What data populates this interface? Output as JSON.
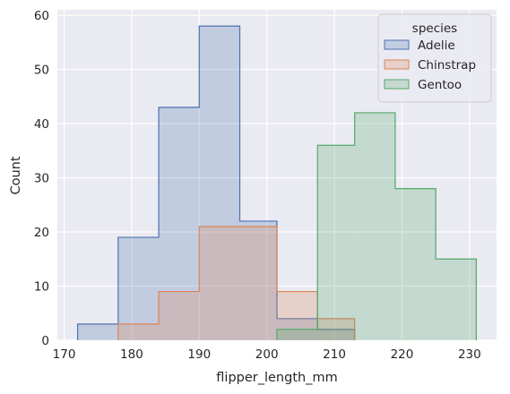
{
  "chart_data": {
    "type": "histogram",
    "element": "step",
    "title": "",
    "xlabel": "flipper_length_mm",
    "ylabel": "Count",
    "xlim": [
      169,
      234
    ],
    "ylim": [
      0,
      61
    ],
    "x_ticks": [
      170,
      180,
      190,
      200,
      210,
      220,
      230
    ],
    "y_ticks": [
      0,
      10,
      20,
      30,
      40,
      50,
      60
    ],
    "grid": true,
    "legend": {
      "title": "species",
      "placement": "top-right"
    },
    "series": [
      {
        "name": "Adelie",
        "color": "#4c72b0",
        "bins": [
          {
            "x0": 172,
            "x1": 178,
            "count": 3
          },
          {
            "x0": 178,
            "x1": 184,
            "count": 19
          },
          {
            "x0": 184,
            "x1": 190,
            "count": 43
          },
          {
            "x0": 190,
            "x1": 196,
            "count": 58
          },
          {
            "x0": 196,
            "x1": 201.5,
            "count": 22
          },
          {
            "x0": 201.5,
            "x1": 207.5,
            "count": 4
          },
          {
            "x0": 207.5,
            "x1": 213,
            "count": 2
          }
        ]
      },
      {
        "name": "Chinstrap",
        "color": "#dd8452",
        "bins": [
          {
            "x0": 178,
            "x1": 184,
            "count": 3
          },
          {
            "x0": 184,
            "x1": 190,
            "count": 9
          },
          {
            "x0": 190,
            "x1": 196,
            "count": 21
          },
          {
            "x0": 196,
            "x1": 201.5,
            "count": 21
          },
          {
            "x0": 201.5,
            "x1": 207.5,
            "count": 9
          },
          {
            "x0": 207.5,
            "x1": 213,
            "count": 4
          }
        ]
      },
      {
        "name": "Gentoo",
        "color": "#55a868",
        "bins": [
          {
            "x0": 201.5,
            "x1": 207.5,
            "count": 2
          },
          {
            "x0": 207.5,
            "x1": 213,
            "count": 36
          },
          {
            "x0": 213,
            "x1": 219,
            "count": 42
          },
          {
            "x0": 219,
            "x1": 225,
            "count": 28
          },
          {
            "x0": 225,
            "x1": 231,
            "count": 15
          }
        ]
      }
    ]
  }
}
